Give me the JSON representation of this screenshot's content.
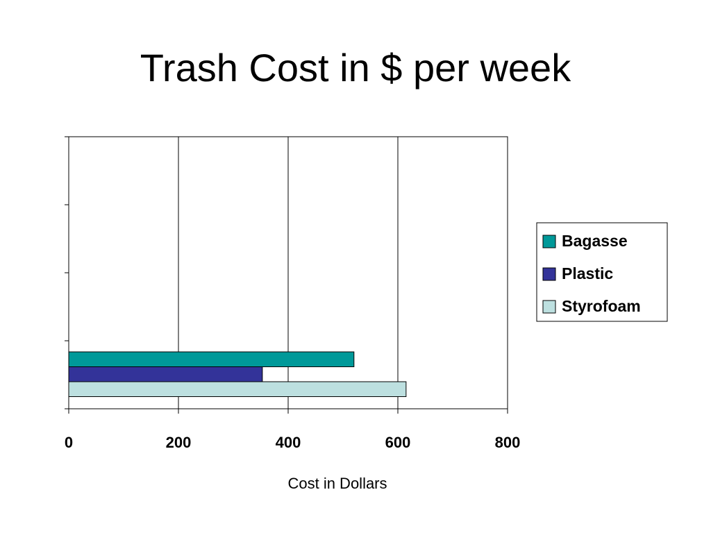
{
  "slide": {
    "title": "Trash Cost in $ per week"
  },
  "chart_data": {
    "type": "bar",
    "orientation": "horizontal",
    "title": "Trash Cost in $ per week",
    "xlabel": "Cost in Dollars",
    "ylabel": "",
    "xlim": [
      0,
      800
    ],
    "xticks": [
      0,
      200,
      400,
      600,
      800
    ],
    "grid": true,
    "legend_position": "right",
    "series": [
      {
        "name": "Bagasse",
        "values": [
          520
        ],
        "color": "#009999"
      },
      {
        "name": "Plastic",
        "values": [
          353
        ],
        "color": "#333399"
      },
      {
        "name": "Styrofoam",
        "values": [
          615
        ],
        "color": "#BDE0E0"
      }
    ]
  }
}
